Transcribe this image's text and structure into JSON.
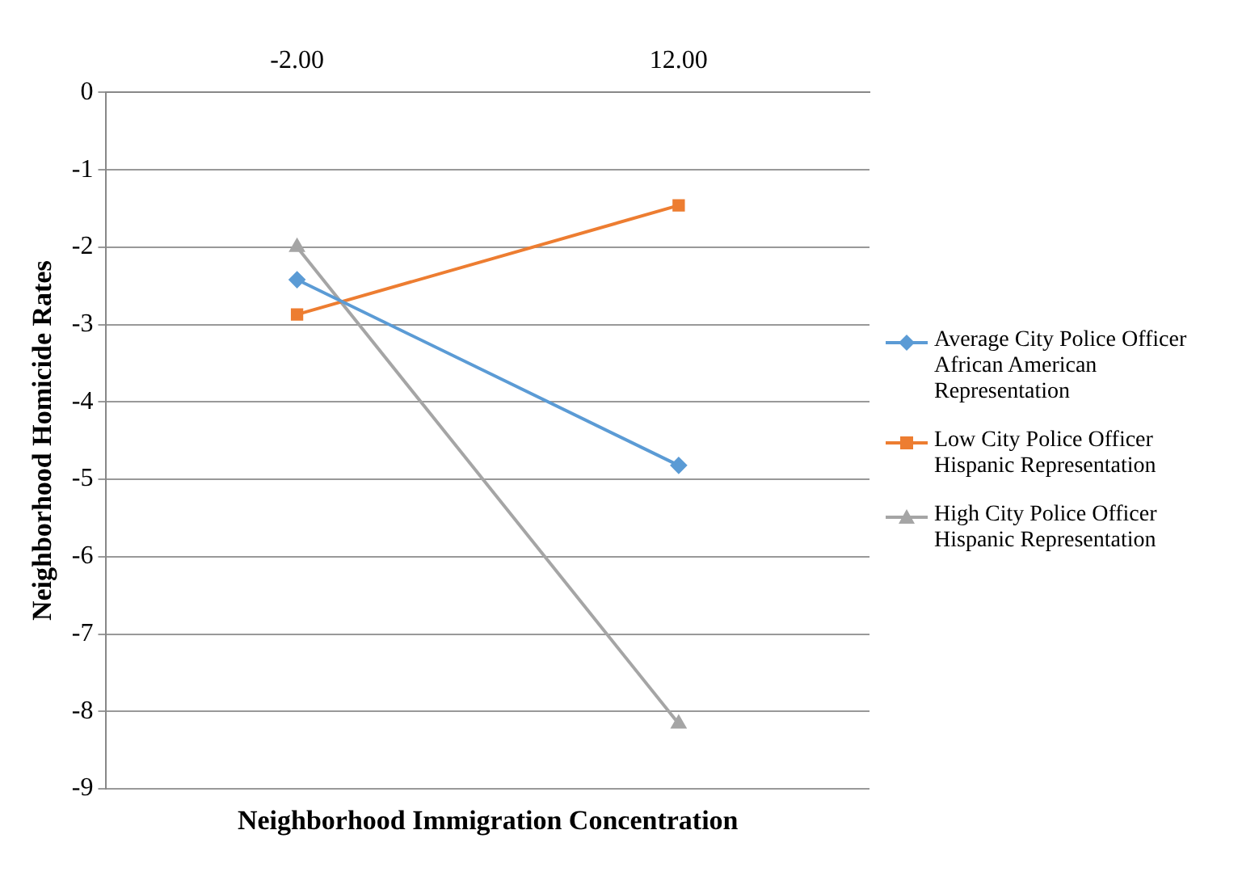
{
  "chart_data": {
    "type": "line",
    "xlabel": "Neighborhood Immigration Concentration",
    "ylabel": "Neighborhood Homicide Rates",
    "categories": [
      "-2.00",
      "12.00"
    ],
    "series": [
      {
        "name": "Average City Police Officer African American Representation",
        "color": "#5b9bd5",
        "marker": "diamond",
        "values": [
          -2.42,
          -4.82
        ]
      },
      {
        "name": "Low City Police Officer Hispanic Representation",
        "color": "#ed7d31",
        "marker": "square",
        "values": [
          -2.87,
          -1.46
        ]
      },
      {
        "name": "High City Police Officer Hispanic Representation",
        "color": "#a5a5a5",
        "marker": "triangle",
        "values": [
          -2.0,
          -8.16
        ]
      }
    ],
    "ylim": [
      -9,
      0
    ],
    "yticks": [
      -9,
      -8,
      -7,
      -6,
      -5,
      -4,
      -3,
      -2,
      -1,
      0
    ],
    "grid": "y",
    "legend": "right"
  }
}
